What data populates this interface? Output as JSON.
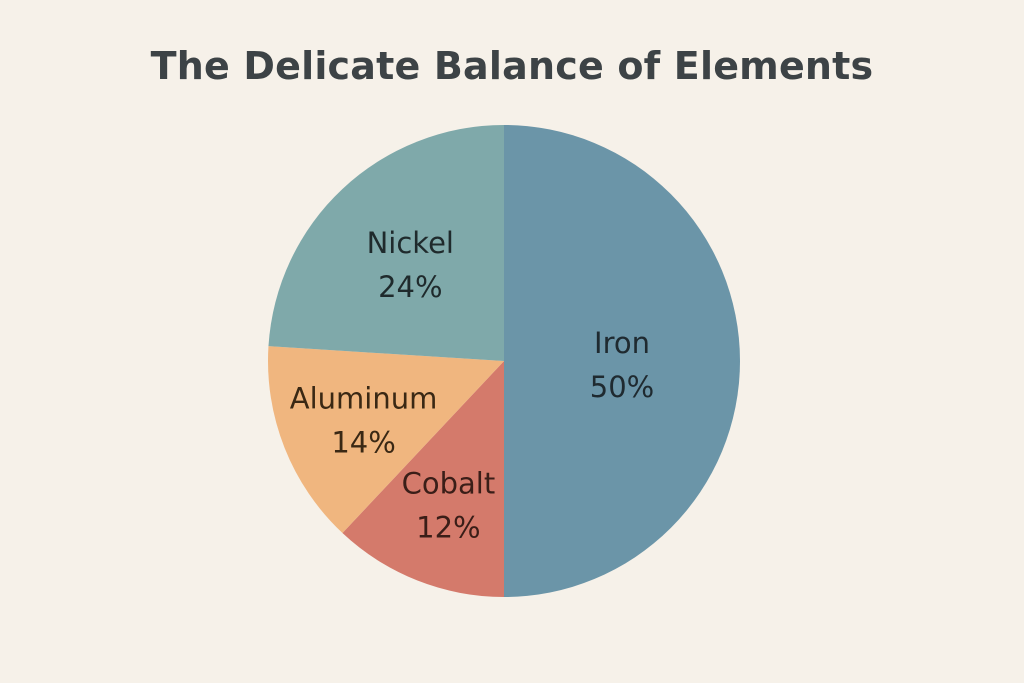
{
  "chart_data": {
    "type": "pie",
    "title": "The Delicate Balance of Elements",
    "slices": [
      {
        "label": "Iron",
        "value": 50,
        "value_label": "50%",
        "color": "#6b95a8",
        "text_color": "#1f2a30"
      },
      {
        "label": "Cobalt",
        "value": 12,
        "value_label": "12%",
        "color": "#d47a6b",
        "text_color": "#3a1e18"
      },
      {
        "label": "Aluminum",
        "value": 14,
        "value_label": "14%",
        "color": "#f0b67f",
        "text_color": "#3a2814"
      },
      {
        "label": "Nickel",
        "value": 24,
        "value_label": "24%",
        "color": "#7fa9aa",
        "text_color": "#1f2a2c"
      }
    ],
    "start_direction": "top",
    "direction": "clockwise",
    "legend": "none"
  }
}
